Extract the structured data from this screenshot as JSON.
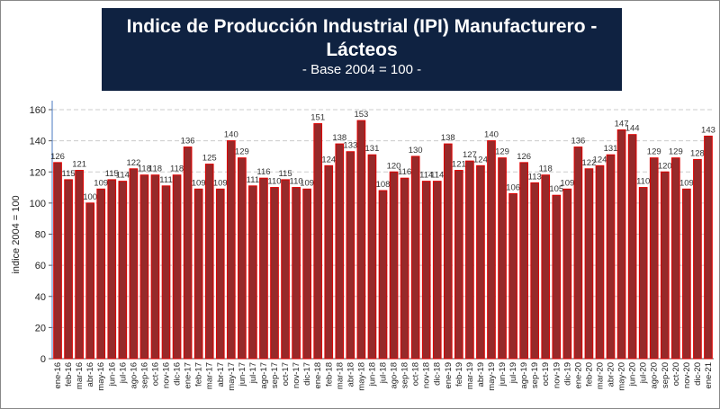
{
  "chart_data": {
    "type": "bar",
    "title": "Indice de Producción Industrial (IPI) Manufacturero - Lácteos",
    "subtitle": "- Base 2004 = 100 -",
    "xlabel": "",
    "ylabel": "indice 2004 = 100",
    "ylim": [
      0,
      160
    ],
    "yticks": [
      0,
      20,
      40,
      60,
      80,
      100,
      120,
      140,
      160
    ],
    "grid": true,
    "bar_color": "#962a2a",
    "categories": [
      "ene-16",
      "feb-16",
      "mar-16",
      "abr-16",
      "may-16",
      "jun-16",
      "jul-16",
      "ago-16",
      "sep-16",
      "oct-16",
      "nov-16",
      "dic-16",
      "ene-17",
      "feb-17",
      "mar-17",
      "abr-17",
      "may-17",
      "jun-17",
      "jul-17",
      "ago-17",
      "sep-17",
      "oct-17",
      "nov-17",
      "dic-17",
      "ene-18",
      "feb-18",
      "mar-18",
      "abr-18",
      "may-18",
      "jun-18",
      "jul-18",
      "ago-18",
      "sep-18",
      "oct-18",
      "nov-18",
      "dic-18",
      "ene-19",
      "feb-19",
      "mar-19",
      "abr-19",
      "may-19",
      "jun-19",
      "jul-19",
      "ago-19",
      "sep-19",
      "oct-19",
      "nov-19",
      "dic-19",
      "ene-20",
      "feb-20",
      "mar-20",
      "abr-20",
      "may-20",
      "jun-20",
      "jul-20",
      "ago-20",
      "sep-20",
      "oct-20",
      "nov-20",
      "dic-20",
      "ene-21"
    ],
    "values": [
      126,
      115,
      121,
      100,
      109,
      115,
      114,
      122,
      118,
      118,
      111,
      118,
      136,
      109,
      125,
      109,
      140,
      129,
      111,
      116,
      110,
      115,
      110,
      109,
      151,
      124,
      138,
      133,
      153,
      131,
      108,
      120,
      116,
      130,
      114,
      114,
      138,
      121,
      127,
      124,
      140,
      129,
      106,
      126,
      113,
      118,
      105,
      109,
      136,
      122,
      124,
      131,
      147,
      144,
      110,
      129,
      120,
      129,
      109,
      128,
      143
    ]
  }
}
